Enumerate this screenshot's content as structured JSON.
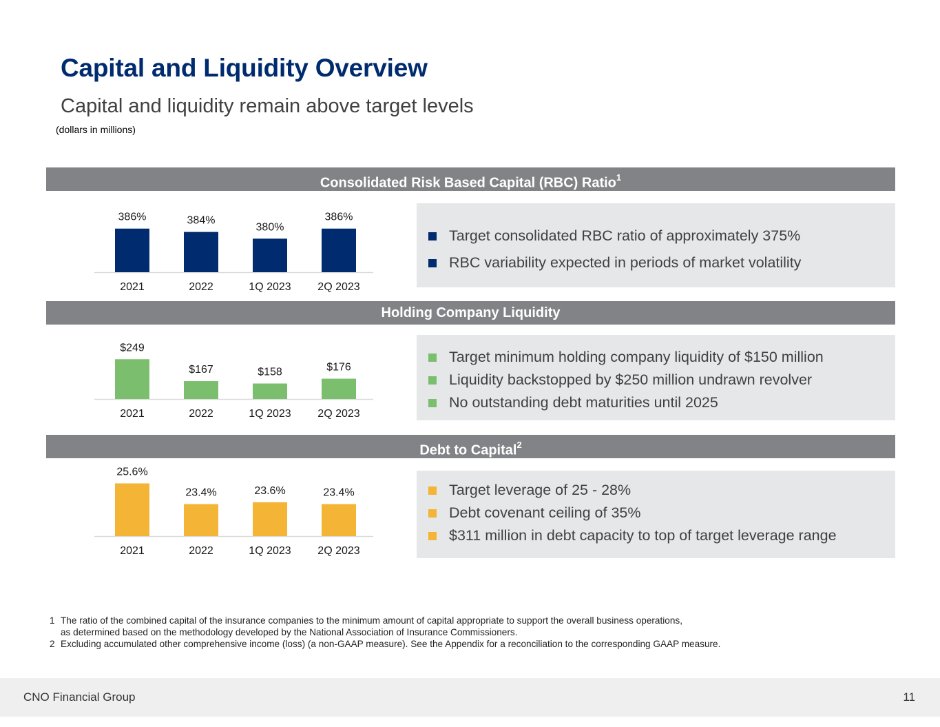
{
  "header": {
    "title": "Capital and Liquidity Overview",
    "subtitle": "Capital and liquidity remain above target levels",
    "units_note": "(dollars in millions)"
  },
  "sections": {
    "rbc": {
      "heading": "Consolidated Risk Based Capital (RBC) Ratio",
      "heading_sup": "1",
      "bullet_color": "#002b6e",
      "bullets": [
        "Target consolidated RBC ratio of approximately 375%",
        "RBC variability expected in periods of market volatility"
      ]
    },
    "liquidity": {
      "heading": "Holding Company Liquidity",
      "bullet_color": "#7bbf6e",
      "bullets": [
        "Target minimum holding company liquidity of $150 million",
        "Liquidity backstopped by $250 million undrawn revolver",
        "No outstanding debt maturities until 2025"
      ]
    },
    "debt": {
      "heading": "Debt to Capital",
      "heading_sup": "2",
      "bullet_color": "#f4b435",
      "bullets": [
        "Target leverage of 25 - 28%",
        "Debt covenant ceiling of 35%",
        "$311 million in debt capacity to top of target leverage range"
      ]
    }
  },
  "chart_data": [
    {
      "type": "bar",
      "categories": [
        "2021",
        "2022",
        "1Q 2023",
        "2Q 2023"
      ],
      "values": [
        386,
        384,
        380,
        386
      ],
      "data_labels": [
        "386%",
        "384%",
        "380%",
        "386%"
      ],
      "color": "#002b6e",
      "ylim": [
        360,
        390
      ]
    },
    {
      "type": "bar",
      "categories": [
        "2021",
        "2022",
        "1Q 2023",
        "2Q 2023"
      ],
      "values": [
        249,
        167,
        158,
        176
      ],
      "data_labels": [
        "$249",
        "$167",
        "$158",
        "$176"
      ],
      "color": "#7bbf6e",
      "ylim": [
        100,
        260
      ]
    },
    {
      "type": "bar",
      "categories": [
        "2021",
        "2022",
        "1Q 2023",
        "2Q 2023"
      ],
      "values": [
        25.6,
        23.4,
        23.6,
        23.4
      ],
      "data_labels": [
        "25.6%",
        "23.4%",
        "23.6%",
        "23.4%"
      ],
      "color": "#f4b435",
      "ylim": [
        20,
        26
      ]
    }
  ],
  "footnotes": [
    {
      "num": "1",
      "text": "The ratio of the combined capital of the insurance companies to the minimum amount of capital appropriate to support the overall business operations,",
      "cont": "as determined based on the methodology developed by the National Association of Insurance Commissioners."
    },
    {
      "num": "2",
      "text": "Excluding accumulated other comprehensive income (loss) (a non-GAAP measure). See the Appendix for a reconciliation to the corresponding GAAP measure."
    }
  ],
  "footer": {
    "company": "CNO Financial Group",
    "page_number": "11"
  }
}
